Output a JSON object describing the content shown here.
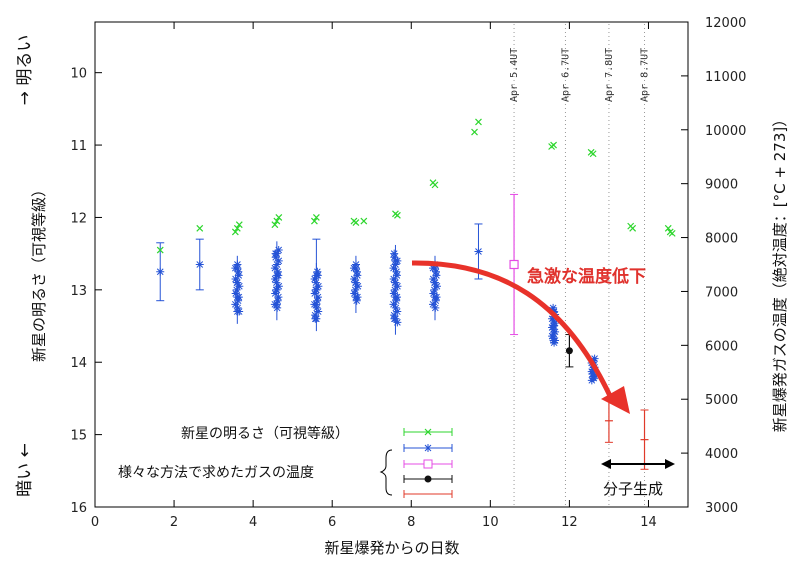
{
  "chart_data": {
    "type": "scatter",
    "xlabel": "新星爆発からの日数",
    "ylabel_left": "新星の明るさ（可視等級）",
    "ylabel_right": "新星爆発ガスの温度（絶対温度：[°C + 273]）",
    "top_left_label": "→ 明るい",
    "bottom_left_label": "暗い ←",
    "xlim": [
      0,
      15
    ],
    "ylim_left": [
      16,
      9.3
    ],
    "ylim_right": [
      3000,
      12000
    ],
    "x_ticks": [
      "0",
      "2",
      "4",
      "6",
      "8",
      "10",
      "12",
      "14"
    ],
    "y_left_ticks": [
      "10",
      "11",
      "12",
      "13",
      "14",
      "15",
      "16"
    ],
    "y_right_ticks": [
      "3000",
      "4000",
      "5000",
      "6000",
      "7000",
      "8000",
      "9000",
      "10000",
      "11000",
      "12000"
    ],
    "grid": false,
    "event_lines": [
      {
        "x": 10.6,
        "label": "Apr 5.4UT"
      },
      {
        "x": 11.9,
        "label": "Apr 6.7UT"
      },
      {
        "x": 13.0,
        "label": "Apr 7.8UT"
      },
      {
        "x": 13.9,
        "label": "Apr 8.7UT"
      }
    ],
    "series": [
      {
        "axis": "left",
        "marker": "x",
        "color": "#2ed62e",
        "points": [
          [
            1.65,
            12.45
          ],
          [
            2.65,
            12.15
          ],
          [
            3.55,
            12.2
          ],
          [
            3.6,
            12.15
          ],
          [
            3.65,
            12.1
          ],
          [
            4.55,
            12.1
          ],
          [
            4.6,
            12.05
          ],
          [
            4.65,
            12.0
          ],
          [
            5.55,
            12.05
          ],
          [
            5.6,
            12.0
          ],
          [
            6.55,
            12.05
          ],
          [
            6.6,
            12.07
          ],
          [
            6.8,
            12.05
          ],
          [
            7.6,
            11.95
          ],
          [
            7.65,
            11.97
          ],
          [
            8.55,
            11.52
          ],
          [
            8.6,
            11.55
          ],
          [
            9.6,
            10.82
          ],
          [
            9.7,
            10.68
          ],
          [
            11.55,
            11.02
          ],
          [
            11.6,
            11.0
          ],
          [
            12.55,
            11.1
          ],
          [
            12.6,
            11.12
          ],
          [
            13.55,
            12.12
          ],
          [
            13.6,
            12.15
          ],
          [
            14.5,
            12.15
          ],
          [
            14.55,
            12.2
          ],
          [
            14.6,
            12.22
          ]
        ]
      },
      {
        "axis": "left",
        "marker": "star",
        "color": "#2553d6",
        "points": [
          [
            1.65,
            12.75
          ],
          [
            2.65,
            12.65
          ],
          [
            9.7,
            12.47
          ],
          [
            3.6,
            12.7
          ],
          [
            3.6,
            12.9
          ],
          [
            3.6,
            13.1
          ],
          [
            3.6,
            13.3
          ],
          [
            4.6,
            12.5
          ],
          [
            4.6,
            12.8
          ],
          [
            4.6,
            13.0
          ],
          [
            4.6,
            13.2
          ],
          [
            5.6,
            12.8
          ],
          [
            5.6,
            13.0
          ],
          [
            5.6,
            13.2
          ],
          [
            5.6,
            13.4
          ],
          [
            6.6,
            12.7
          ],
          [
            6.6,
            12.9
          ],
          [
            6.6,
            13.1
          ],
          [
            7.6,
            12.6
          ],
          [
            7.6,
            12.9
          ],
          [
            7.6,
            13.1
          ],
          [
            7.6,
            13.4
          ],
          [
            8.6,
            12.7
          ],
          [
            8.6,
            12.9
          ],
          [
            8.6,
            13.1
          ],
          [
            11.6,
            13.3
          ],
          [
            11.6,
            13.5
          ],
          [
            11.6,
            13.7
          ],
          [
            12.6,
            14.0
          ],
          [
            12.6,
            14.1
          ],
          [
            12.6,
            14.2
          ]
        ]
      }
    ],
    "temperatures": [
      {
        "x": 10.6,
        "t": 7500,
        "err": 1300,
        "color": "#e44ce4",
        "marker": "square"
      },
      {
        "x": 12.0,
        "t": 5900,
        "err": 300,
        "color": "#111111",
        "marker": "circle"
      },
      {
        "x": 13.0,
        "t": 4600,
        "err": 400,
        "color": "#e03a2a",
        "marker": "plus"
      },
      {
        "x": 13.9,
        "t": 4250,
        "err": 550,
        "color": "#e03a2a",
        "marker": "plus"
      }
    ],
    "annotations": {
      "drop": "急激な温度低下",
      "molecule": "分子生成"
    },
    "legend": {
      "brightness": "新星の明るさ（可視等級）",
      "temperature": "様々な方法で求めたガスの温度"
    }
  }
}
